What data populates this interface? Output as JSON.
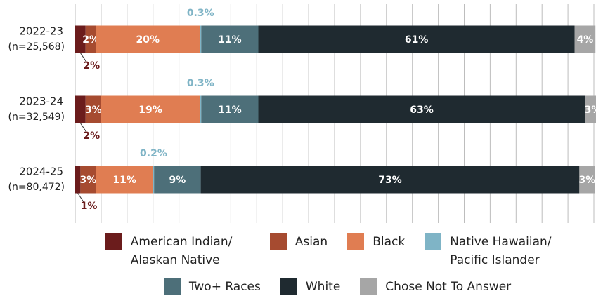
{
  "chart_data": {
    "type": "stacked-bar-horizontal",
    "categories": [
      "2022-23",
      "2023-24",
      "2024-25"
    ],
    "sample_sizes": [
      "(n=25,568)",
      "(n=32,549)",
      "(n=80,472)"
    ],
    "xlim": [
      0,
      100
    ],
    "xticks": [
      0,
      5,
      10,
      15,
      20,
      25,
      30,
      35,
      40,
      45,
      50,
      55,
      60,
      65,
      70,
      75,
      80,
      85,
      90,
      95,
      100
    ],
    "grid": true,
    "legend": "bottom",
    "series": [
      {
        "name": "American Indian/ Alaskan Native",
        "color": "#6b1c1c",
        "label_position": "below",
        "values": [
          2,
          2,
          1
        ],
        "value_labels": [
          "2%",
          "2%",
          "1%"
        ]
      },
      {
        "name": "Asian",
        "color": "#a64b30",
        "label_position": "inside",
        "values": [
          2,
          3,
          3
        ],
        "value_labels": [
          "2%",
          "3%",
          "3%"
        ]
      },
      {
        "name": "Black",
        "color": "#e07d52",
        "label_position": "inside",
        "values": [
          20,
          19,
          11
        ],
        "value_labels": [
          "20%",
          "19%",
          "11%"
        ]
      },
      {
        "name": "Native Hawaiian/ Pacific Islander",
        "color": "#7fb4c6",
        "label_position": "above",
        "values": [
          0.3,
          0.3,
          0.2
        ],
        "value_labels": [
          "0.3%",
          "0.3%",
          "0.2%"
        ]
      },
      {
        "name": "Two+ Races",
        "color": "#4d6f79",
        "label_position": "inside",
        "values": [
          11,
          11,
          9
        ],
        "value_labels": [
          "11%",
          "11%",
          "9%"
        ]
      },
      {
        "name": "White",
        "color": "#1f2a30",
        "label_position": "inside",
        "values": [
          61,
          63,
          73
        ],
        "value_labels": [
          "61%",
          "63%",
          "73%"
        ]
      },
      {
        "name": "Chose Not To Answer",
        "color": "#a6a6a6",
        "label_position": "inside",
        "values": [
          4,
          3,
          3
        ],
        "value_labels": [
          "4%",
          "3%",
          "3%"
        ]
      }
    ]
  }
}
